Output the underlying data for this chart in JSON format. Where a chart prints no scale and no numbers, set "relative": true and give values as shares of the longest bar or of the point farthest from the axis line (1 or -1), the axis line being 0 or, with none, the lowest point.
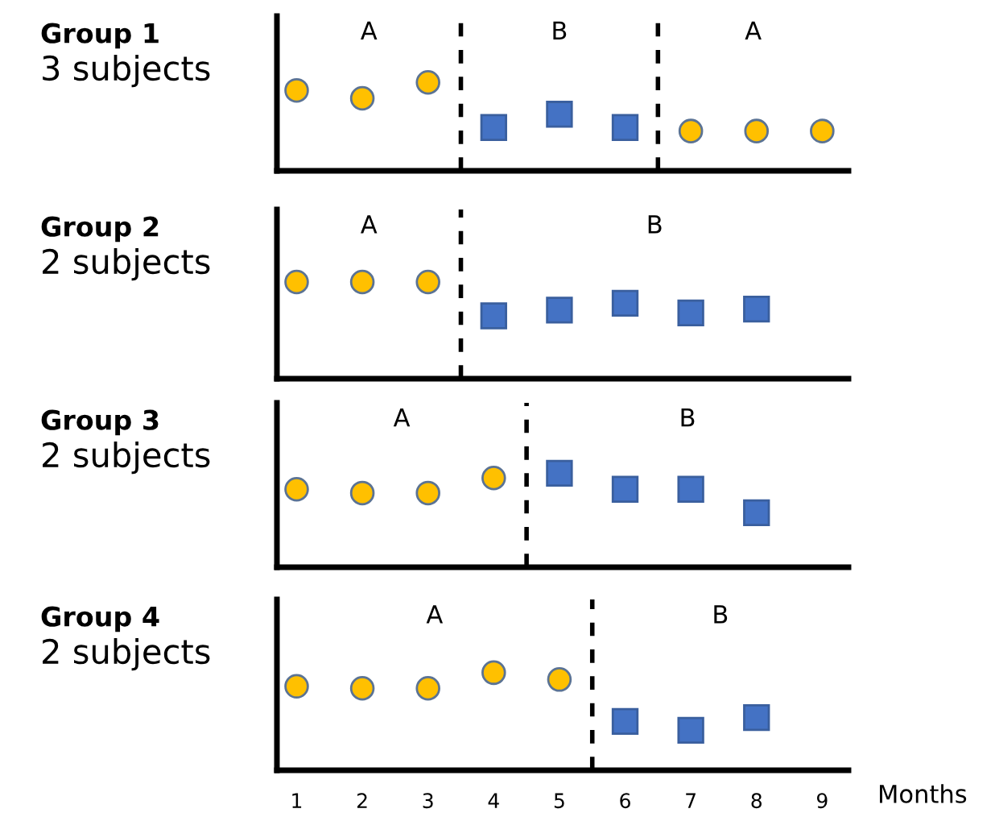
{
  "chart_data": [
    {
      "type": "scatter",
      "title": "Group 1",
      "subtitle": "3 subjects",
      "relative": true,
      "tick_labels": false,
      "xlim": [
        0.7,
        9.4
      ],
      "x": [
        1,
        2,
        3,
        4,
        5,
        6,
        7,
        8,
        9
      ],
      "series": [
        {
          "color": "#ffc000",
          "marker": "circle",
          "values": [
            0.91,
            0.82,
            1,
            null,
            null,
            null,
            0.45,
            0.45,
            0.45
          ]
        },
        {
          "color": "#4472c4",
          "marker": "square",
          "values": [
            null,
            null,
            null,
            0.49,
            0.64,
            0.49,
            null,
            null,
            null
          ]
        }
      ],
      "ref_lines": [
        {
          "axis": "x",
          "value": 3.5,
          "line_style": "dashed"
        },
        {
          "axis": "x",
          "value": 6.5,
          "line_style": "dashed"
        }
      ],
      "annotations": [
        "A",
        "B",
        "A"
      ]
    },
    {
      "type": "scatter",
      "title": "Group 2",
      "subtitle": "2 subjects",
      "relative": true,
      "tick_labels": false,
      "xlim": [
        0.7,
        9.4
      ],
      "x": [
        1,
        2,
        3,
        4,
        5,
        6,
        7,
        8
      ],
      "series": [
        {
          "color": "#ffc000",
          "marker": "circle",
          "values": [
            1,
            1,
            1,
            null,
            null,
            null,
            null,
            null
          ]
        },
        {
          "color": "#4472c4",
          "marker": "square",
          "values": [
            null,
            null,
            null,
            0.65,
            0.71,
            0.78,
            0.68,
            0.72
          ]
        }
      ],
      "ref_lines": [
        {
          "axis": "x",
          "value": 3.5,
          "line_style": "dashed"
        }
      ],
      "annotations": [
        "A",
        "B"
      ]
    },
    {
      "type": "scatter",
      "title": "Group 3",
      "subtitle": "2 subjects",
      "relative": true,
      "tick_labels": false,
      "xlim": [
        0.7,
        9.4
      ],
      "x": [
        1,
        2,
        3,
        4,
        5,
        6,
        7,
        8
      ],
      "series": [
        {
          "color": "#ffc000",
          "marker": "circle",
          "values": [
            0.83,
            0.79,
            0.79,
            0.95,
            null,
            null,
            null,
            null
          ]
        },
        {
          "color": "#4472c4",
          "marker": "square",
          "values": [
            null,
            null,
            null,
            null,
            1,
            0.83,
            0.83,
            0.58
          ]
        }
      ],
      "ref_lines": [
        {
          "axis": "x",
          "value": 4.5,
          "line_style": "dashed"
        }
      ],
      "annotations": [
        "A",
        "B"
      ]
    },
    {
      "type": "scatter",
      "title": "Group 4",
      "subtitle": "2 subjects",
      "relative": true,
      "tick_labels": "x",
      "xlabel": "Months",
      "xlim": [
        0.7,
        9.4
      ],
      "xticks": [
        1,
        2,
        3,
        4,
        5,
        6,
        7,
        8,
        9
      ],
      "x": [
        1,
        2,
        3,
        4,
        5,
        6,
        7,
        8
      ],
      "series": [
        {
          "color": "#ffc000",
          "marker": "circle",
          "values": [
            0.86,
            0.84,
            0.84,
            1,
            0.93,
            null,
            null,
            null
          ]
        },
        {
          "color": "#4472c4",
          "marker": "square",
          "values": [
            null,
            null,
            null,
            null,
            null,
            0.5,
            0.41,
            0.54
          ]
        }
      ],
      "ref_lines": [
        {
          "axis": "x",
          "value": 5.5,
          "line_style": "dashed"
        }
      ],
      "annotations": [
        "A",
        "B"
      ]
    }
  ]
}
